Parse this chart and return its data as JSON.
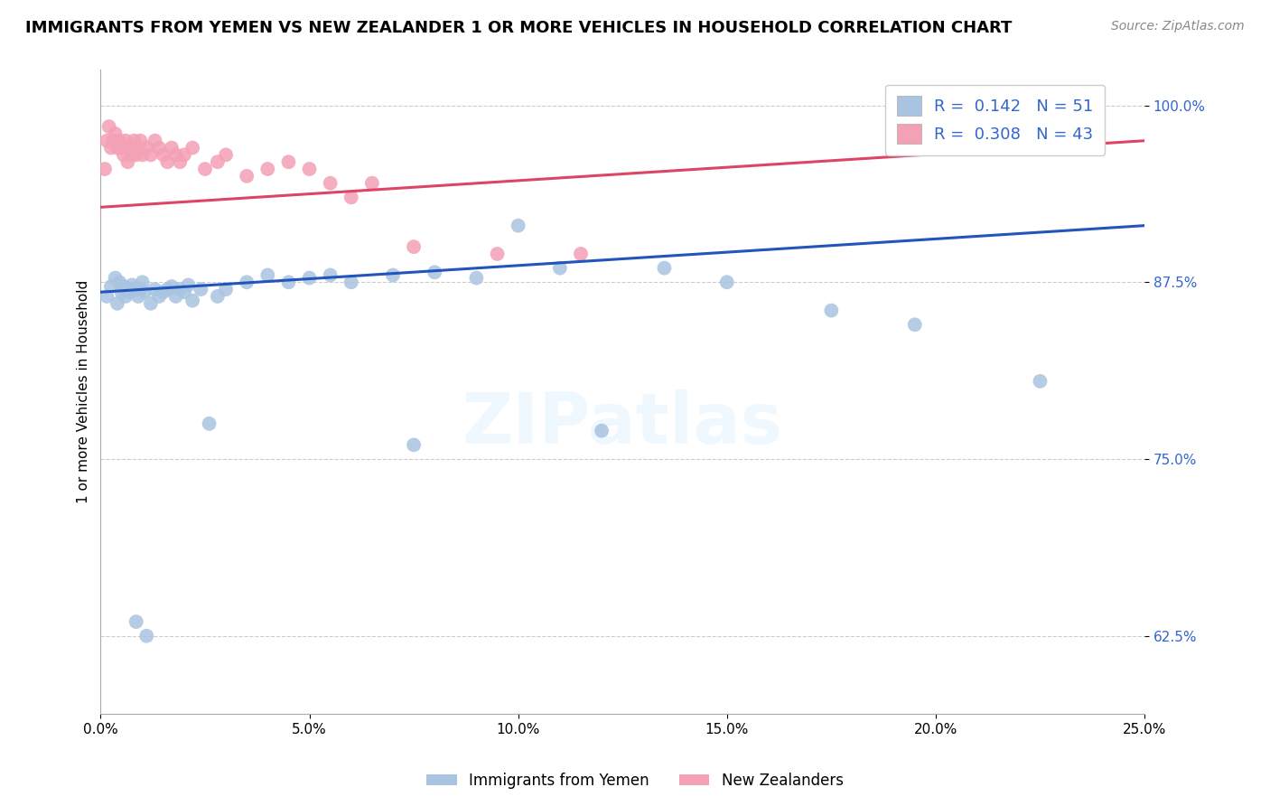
{
  "title": "IMMIGRANTS FROM YEMEN VS NEW ZEALANDER 1 OR MORE VEHICLES IN HOUSEHOLD CORRELATION CHART",
  "source": "Source: ZipAtlas.com",
  "ylabel": "1 or more Vehicles in Household",
  "xmin": 0.0,
  "xmax": 25.0,
  "ymin": 57.0,
  "ymax": 102.5,
  "yticks": [
    62.5,
    75.0,
    87.5,
    100.0
  ],
  "xticks": [
    0.0,
    5.0,
    10.0,
    15.0,
    20.0,
    25.0
  ],
  "blue_R": 0.142,
  "blue_N": 51,
  "pink_R": 0.308,
  "pink_N": 43,
  "blue_label": "Immigrants from Yemen",
  "pink_label": "New Zealanders",
  "blue_color": "#a8c4e0",
  "pink_color": "#f4a0b5",
  "blue_line_color": "#2255bb",
  "pink_line_color": "#dd4466",
  "tick_color": "#3366cc",
  "blue_line_y0": 86.8,
  "blue_line_y1": 91.5,
  "pink_line_y0": 92.8,
  "pink_line_y1": 97.5,
  "blue_scatter_x": [
    0.15,
    0.25,
    0.35,
    0.4,
    0.45,
    0.5,
    0.55,
    0.6,
    0.65,
    0.7,
    0.75,
    0.8,
    0.85,
    0.9,
    0.95,
    1.0,
    1.05,
    1.1,
    1.2,
    1.3,
    1.4,
    1.5,
    1.6,
    1.7,
    1.8,
    1.9,
    2.0,
    2.1,
    2.2,
    2.4,
    2.6,
    2.8,
    3.0,
    3.5,
    4.0,
    4.5,
    5.0,
    5.5,
    6.0,
    7.0,
    7.5,
    8.0,
    9.0,
    10.0,
    11.0,
    12.0,
    13.5,
    15.0,
    17.5,
    19.5,
    22.5
  ],
  "blue_scatter_y": [
    86.5,
    87.2,
    87.8,
    86.0,
    87.5,
    86.8,
    87.2,
    86.5,
    87.0,
    86.8,
    87.3,
    87.0,
    63.5,
    86.5,
    87.0,
    87.5,
    86.8,
    62.5,
    86.0,
    87.0,
    86.5,
    86.8,
    87.0,
    87.2,
    86.5,
    87.0,
    86.8,
    87.3,
    86.2,
    87.0,
    77.5,
    86.5,
    87.0,
    87.5,
    88.0,
    87.5,
    87.8,
    88.0,
    87.5,
    88.0,
    76.0,
    88.2,
    87.8,
    91.5,
    88.5,
    77.0,
    88.5,
    87.5,
    85.5,
    84.5,
    80.5
  ],
  "pink_scatter_x": [
    0.1,
    0.15,
    0.2,
    0.25,
    0.3,
    0.35,
    0.4,
    0.45,
    0.5,
    0.55,
    0.6,
    0.65,
    0.7,
    0.75,
    0.8,
    0.85,
    0.9,
    0.95,
    1.0,
    1.1,
    1.2,
    1.3,
    1.4,
    1.5,
    1.6,
    1.7,
    1.8,
    1.9,
    2.0,
    2.2,
    2.5,
    2.8,
    3.0,
    3.5,
    4.0,
    4.5,
    5.0,
    5.5,
    6.0,
    6.5,
    7.5,
    9.5,
    11.5
  ],
  "pink_scatter_y": [
    95.5,
    97.5,
    98.5,
    97.0,
    97.5,
    98.0,
    97.0,
    97.5,
    97.0,
    96.5,
    97.5,
    96.0,
    97.0,
    96.5,
    97.5,
    96.5,
    97.0,
    97.5,
    96.5,
    97.0,
    96.5,
    97.5,
    97.0,
    96.5,
    96.0,
    97.0,
    96.5,
    96.0,
    96.5,
    97.0,
    95.5,
    96.0,
    96.5,
    95.0,
    95.5,
    96.0,
    95.5,
    94.5,
    93.5,
    94.5,
    90.0,
    89.5,
    89.5
  ],
  "background_color": "#ffffff",
  "grid_color": "#cccccc",
  "title_fontsize": 13,
  "axis_label_fontsize": 11,
  "tick_fontsize": 11,
  "legend_fontsize": 13,
  "source_fontsize": 10
}
